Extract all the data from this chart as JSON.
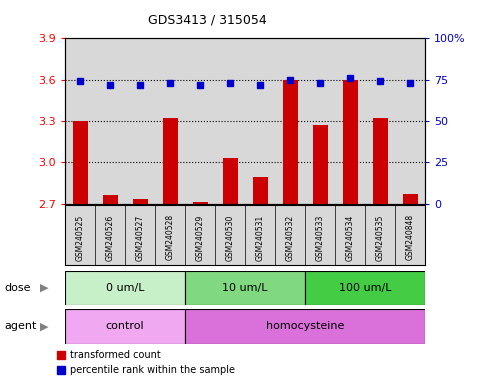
{
  "title": "GDS3413 / 315054",
  "samples": [
    "GSM240525",
    "GSM240526",
    "GSM240527",
    "GSM240528",
    "GSM240529",
    "GSM240530",
    "GSM240531",
    "GSM240532",
    "GSM240533",
    "GSM240534",
    "GSM240535",
    "GSM240848"
  ],
  "red_values": [
    3.3,
    2.76,
    2.73,
    3.32,
    2.71,
    3.03,
    2.89,
    3.6,
    3.27,
    3.6,
    3.32,
    2.77
  ],
  "blue_values": [
    74,
    72,
    72,
    73,
    72,
    73,
    72,
    75,
    73,
    76,
    74,
    73
  ],
  "ylim_left": [
    2.7,
    3.9
  ],
  "ylim_right": [
    0,
    100
  ],
  "yticks_left": [
    2.7,
    3.0,
    3.3,
    3.6,
    3.9
  ],
  "yticks_right": [
    0,
    25,
    50,
    75,
    100
  ],
  "dose_groups": [
    {
      "label": "0 um/L",
      "start": 0,
      "end": 4,
      "color": "#c8f0c8"
    },
    {
      "label": "10 um/L",
      "start": 4,
      "end": 8,
      "color": "#80d880"
    },
    {
      "label": "100 um/L",
      "start": 8,
      "end": 12,
      "color": "#44cc44"
    }
  ],
  "agent_groups": [
    {
      "label": "control",
      "start": 0,
      "end": 4,
      "color": "#f0a8f0"
    },
    {
      "label": "homocysteine",
      "start": 4,
      "end": 12,
      "color": "#da70da"
    }
  ],
  "red_color": "#cc0000",
  "blue_color": "#0000cc",
  "bar_width": 0.5,
  "bg_color": "#d8d8d8",
  "legend_red": "transformed count",
  "legend_blue": "percentile rank within the sample",
  "dose_label": "dose",
  "agent_label": "agent"
}
